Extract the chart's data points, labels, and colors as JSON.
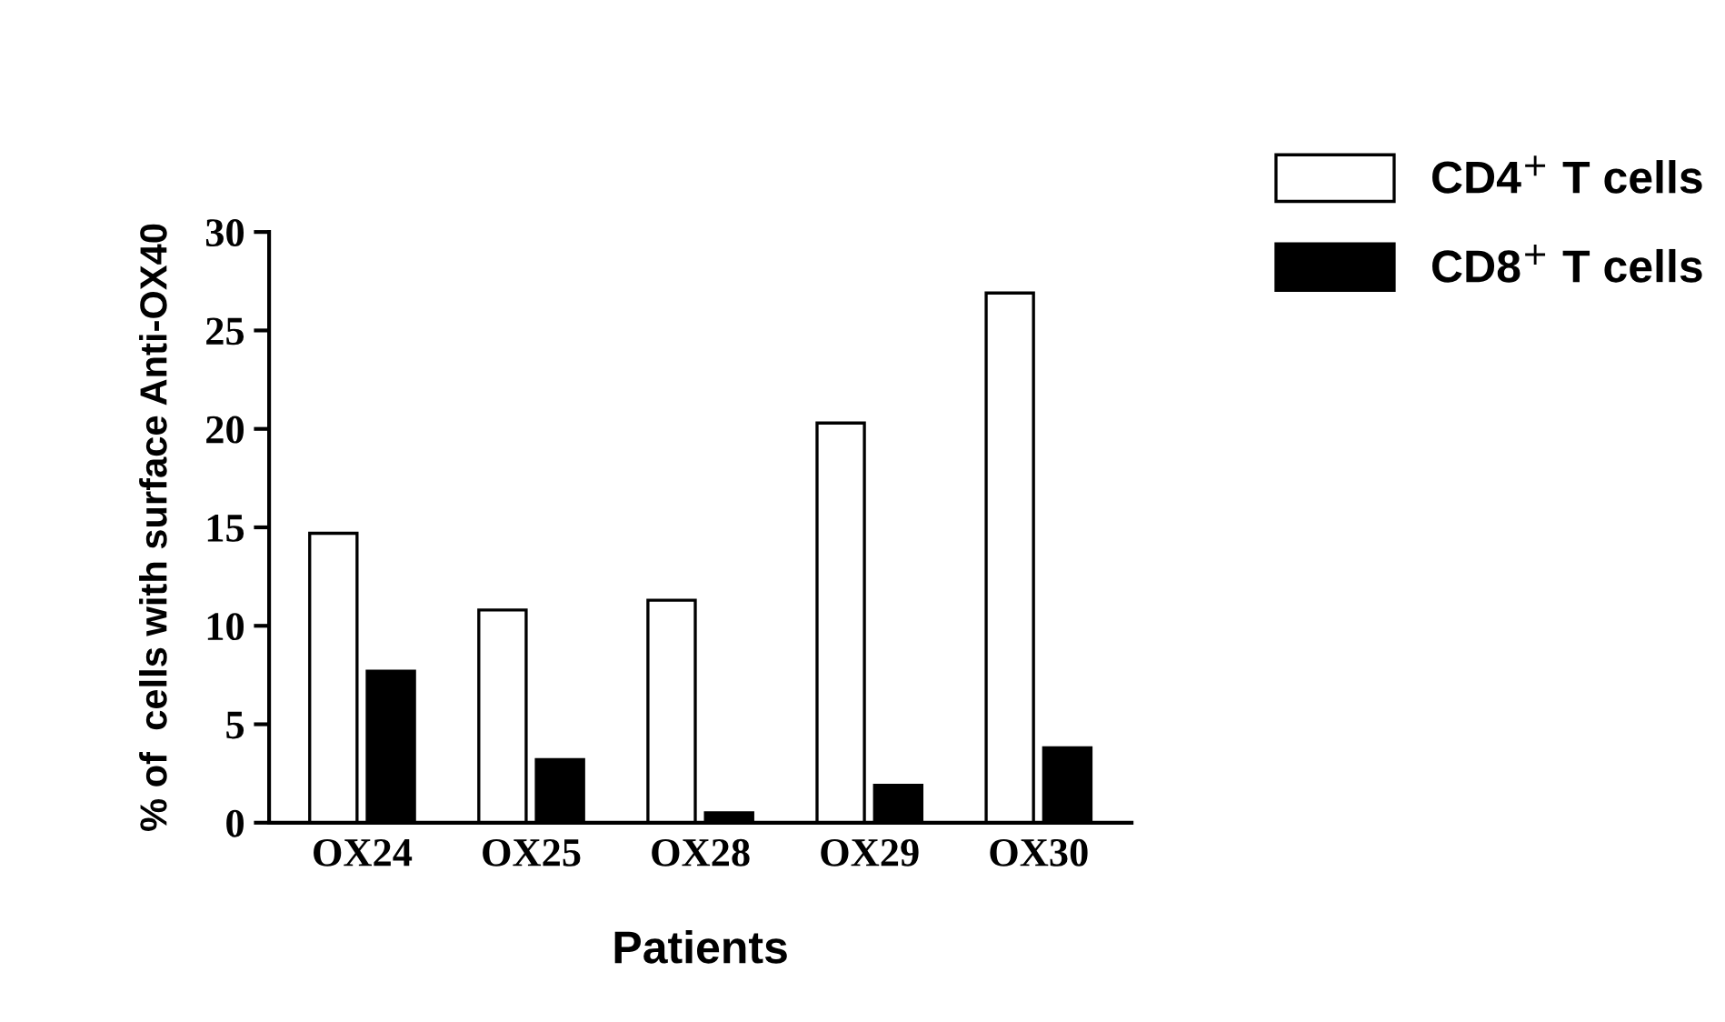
{
  "chart_data": {
    "type": "bar",
    "xlabel": "Patients",
    "ylabel": "% of  cells with surface Anti-OX40",
    "categories": [
      "OX24",
      "OX25",
      "OX28",
      "OX29",
      "OX30"
    ],
    "series": [
      {
        "name": "CD4$^{+}$ T cells",
        "color": "#ffffff",
        "values": [
          14.7,
          10.8,
          11.3,
          20.3,
          26.9
        ]
      },
      {
        "name": "CD8$^{+}$ T cells",
        "color": "#000000",
        "values": [
          7.7,
          3.2,
          0.5,
          1.9,
          3.8
        ]
      }
    ],
    "ylim": [
      0,
      30
    ],
    "yticks": [
      0,
      5,
      10,
      15,
      20,
      25,
      30
    ],
    "grid": false,
    "legend": "right"
  }
}
